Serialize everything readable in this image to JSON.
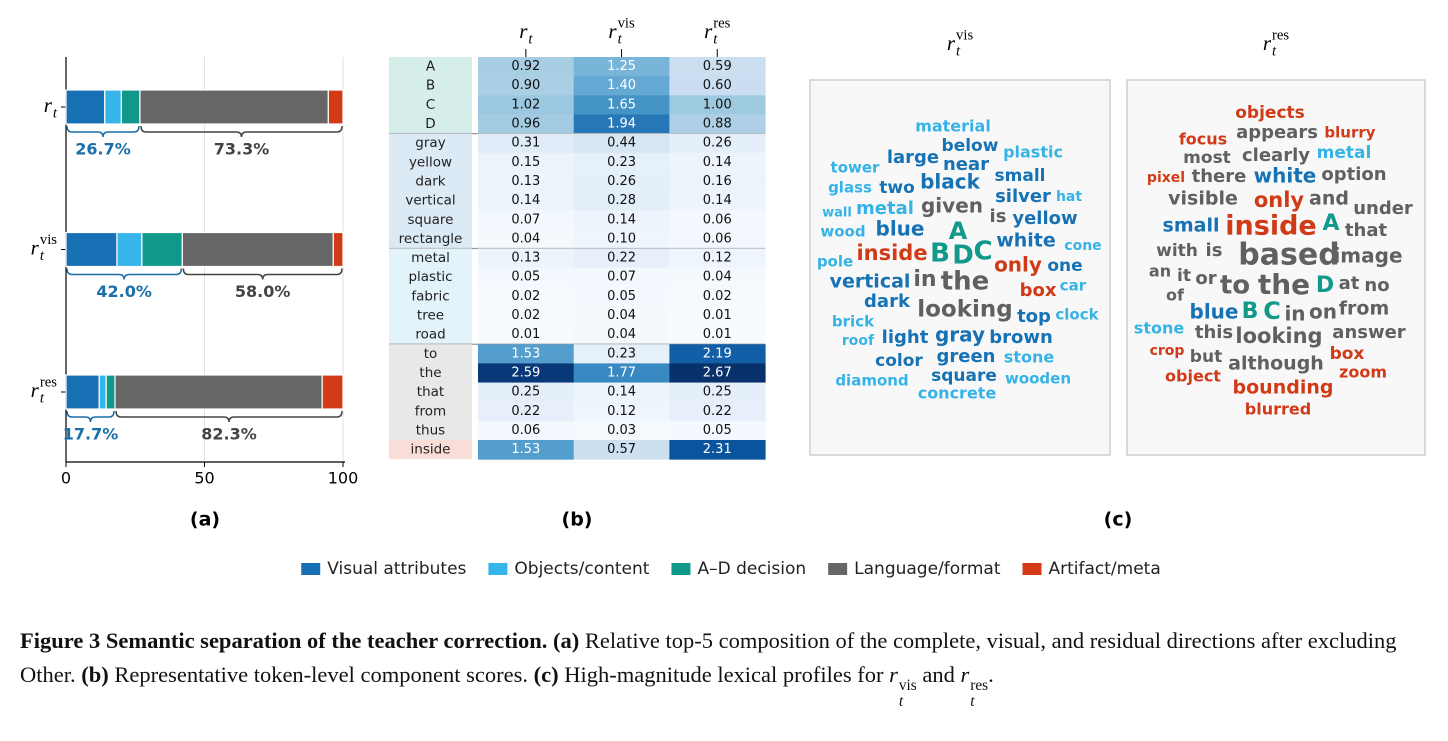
{
  "chart_data": [
    {
      "type": "stacked-bar",
      "orientation": "horizontal",
      "panel_label": "(a)",
      "categories": [
        {
          "base": "r",
          "sub": "t"
        },
        {
          "base": "r",
          "sub": "t",
          "sup": "vis"
        },
        {
          "base": "r",
          "sub": "t",
          "sup": "res"
        }
      ],
      "series": [
        {
          "name": "Visual attributes",
          "color": "#1670b3",
          "values": [
            14,
            18.4,
            12
          ]
        },
        {
          "name": "Objects/content",
          "color": "#35b5e9",
          "values": [
            6,
            9,
            2.5
          ]
        },
        {
          "name": "A–D decision",
          "color": "#10998a",
          "values": [
            6.7,
            14.6,
            3.2
          ]
        },
        {
          "name": "Language/format",
          "color": "#666666",
          "values": [
            68,
            54.5,
            74.8
          ]
        },
        {
          "name": "Artifact/meta",
          "color": "#d23b16",
          "values": [
            5.3,
            3.5,
            7.5
          ]
        }
      ],
      "group_labels": [
        [
          "26.7%",
          "73.3%"
        ],
        [
          "42.0%",
          "58.0%"
        ],
        [
          "17.7%",
          "82.3%"
        ]
      ],
      "xlim": [
        0,
        100
      ],
      "xticks": [
        0,
        50,
        100
      ],
      "grid": true
    },
    {
      "type": "heatmap",
      "panel_label": "(b)",
      "colormap": "Blues",
      "columns": [
        {
          "base": "r",
          "sub": "t"
        },
        {
          "base": "r",
          "sub": "t",
          "sup": "vis"
        },
        {
          "base": "r",
          "sub": "t",
          "sup": "res"
        }
      ],
      "groups": [
        {
          "color": "#d6eeea",
          "rows": [
            "A",
            "B",
            "C",
            "D"
          ],
          "values": [
            [
              0.92,
              1.25,
              0.59
            ],
            [
              0.9,
              1.4,
              0.6
            ],
            [
              1.02,
              1.65,
              1.0
            ],
            [
              0.96,
              1.94,
              0.88
            ]
          ],
          "value_labels": [
            [
              "0.92",
              "1.25",
              "0.59"
            ],
            [
              "0.90",
              "1.40",
              "0.60"
            ],
            [
              "1.02",
              "1.65",
              "1.00"
            ],
            [
              "0.96",
              "1.94",
              "0.88"
            ]
          ]
        },
        {
          "color": "#dceaf5",
          "rows": [
            "gray",
            "yellow",
            "dark",
            "vertical",
            "square",
            "rectangle"
          ],
          "values": [
            [
              0.31,
              0.44,
              0.26
            ],
            [
              0.15,
              0.23,
              0.14
            ],
            [
              0.13,
              0.26,
              0.16
            ],
            [
              0.14,
              0.28,
              0.14
            ],
            [
              0.07,
              0.14,
              0.06
            ],
            [
              0.04,
              0.1,
              0.06
            ]
          ],
          "value_labels": [
            [
              "0.31",
              "0.44",
              "0.26"
            ],
            [
              "0.15",
              "0.23",
              "0.14"
            ],
            [
              "0.13",
              "0.26",
              "0.16"
            ],
            [
              "0.14",
              "0.28",
              "0.14"
            ],
            [
              "0.07",
              "0.14",
              "0.06"
            ],
            [
              "0.04",
              "0.10",
              "0.06"
            ]
          ]
        },
        {
          "color": "#e2f3fa",
          "rows": [
            "metal",
            "plastic",
            "fabric",
            "tree",
            "road"
          ],
          "values": [
            [
              0.13,
              0.22,
              0.12
            ],
            [
              0.05,
              0.07,
              0.04
            ],
            [
              0.02,
              0.05,
              0.02
            ],
            [
              0.02,
              0.04,
              0.01
            ],
            [
              0.01,
              0.04,
              0.01
            ]
          ],
          "value_labels": [
            [
              "0.13",
              "0.22",
              "0.12"
            ],
            [
              "0.05",
              "0.07",
              "0.04"
            ],
            [
              "0.02",
              "0.05",
              "0.02"
            ],
            [
              "0.02",
              "0.04",
              "0.01"
            ],
            [
              "0.01",
              "0.04",
              "0.01"
            ]
          ]
        },
        {
          "color": "#e8e8e8",
          "rows": [
            "to",
            "the",
            "that",
            "from",
            "thus"
          ],
          "values": [
            [
              1.53,
              0.23,
              2.19
            ],
            [
              2.59,
              1.77,
              2.67
            ],
            [
              0.25,
              0.14,
              0.25
            ],
            [
              0.22,
              0.12,
              0.22
            ],
            [
              0.06,
              0.03,
              0.05
            ]
          ],
          "value_labels": [
            [
              "1.53",
              "0.23",
              "2.19"
            ],
            [
              "2.59",
              "1.77",
              "2.67"
            ],
            [
              "0.25",
              "0.14",
              "0.25"
            ],
            [
              "0.22",
              "0.12",
              "0.22"
            ],
            [
              "0.06",
              "0.03",
              "0.05"
            ]
          ]
        },
        {
          "color": "#f9ddd7",
          "rows": [
            "inside"
          ],
          "values": [
            [
              1.53,
              0.57,
              2.31
            ]
          ],
          "value_labels": [
            [
              "1.53",
              "0.57",
              "2.31"
            ]
          ]
        }
      ]
    },
    {
      "type": "wordcloud",
      "panel_label": "(c)",
      "clouds": [
        {
          "title": {
            "base": "r",
            "sub": "t",
            "sup": "vis"
          },
          "words": [
            {
              "text": "material",
              "color": "#36b3e6"
            },
            {
              "text": "below",
              "color": "#1672b4"
            },
            {
              "text": "tower",
              "color": "#36b3e6"
            },
            {
              "text": "large",
              "color": "#1672b4"
            },
            {
              "text": "near",
              "color": "#1672b4"
            },
            {
              "text": "plastic",
              "color": "#36b3e6"
            },
            {
              "text": "glass",
              "color": "#36b3e6"
            },
            {
              "text": "two",
              "color": "#1672b4"
            },
            {
              "text": "black",
              "color": "#1672b4"
            },
            {
              "text": "small",
              "color": "#1672b4"
            },
            {
              "text": "silver",
              "color": "#1672b4"
            },
            {
              "text": "hat",
              "color": "#36b3e6"
            },
            {
              "text": "wall",
              "color": "#36b3e6"
            },
            {
              "text": "metal",
              "color": "#36b3e6"
            },
            {
              "text": "given",
              "color": "#606060"
            },
            {
              "text": "is",
              "color": "#606060"
            },
            {
              "text": "yellow",
              "color": "#1672b4"
            },
            {
              "text": "wood",
              "color": "#36b3e6"
            },
            {
              "text": "blue",
              "color": "#1672b4"
            },
            {
              "text": "A",
              "color": "#119a8a"
            },
            {
              "text": "white",
              "color": "#1672b4"
            },
            {
              "text": "cone",
              "color": "#36b3e6"
            },
            {
              "text": "inside",
              "color": "#d03a16"
            },
            {
              "text": "B",
              "color": "#119a8a"
            },
            {
              "text": "D",
              "color": "#119a8a"
            },
            {
              "text": "C",
              "color": "#119a8a"
            },
            {
              "text": "pole",
              "color": "#36b3e6"
            },
            {
              "text": "only",
              "color": "#d03a16"
            },
            {
              "text": "one",
              "color": "#1672b4"
            },
            {
              "text": "in",
              "color": "#606060"
            },
            {
              "text": "the",
              "color": "#606060"
            },
            {
              "text": "vertical",
              "color": "#1672b4"
            },
            {
              "text": "box",
              "color": "#d03a16"
            },
            {
              "text": "car",
              "color": "#36b3e6"
            },
            {
              "text": "dark",
              "color": "#1672b4"
            },
            {
              "text": "looking",
              "color": "#606060"
            },
            {
              "text": "top",
              "color": "#1672b4"
            },
            {
              "text": "clock",
              "color": "#36b3e6"
            },
            {
              "text": "brick",
              "color": "#36b3e6"
            },
            {
              "text": "light",
              "color": "#1672b4"
            },
            {
              "text": "gray",
              "color": "#1672b4"
            },
            {
              "text": "brown",
              "color": "#1672b4"
            },
            {
              "text": "roof",
              "color": "#36b3e6"
            },
            {
              "text": "color",
              "color": "#1672b4"
            },
            {
              "text": "green",
              "color": "#1672b4"
            },
            {
              "text": "stone",
              "color": "#36b3e6"
            },
            {
              "text": "diamond",
              "color": "#36b3e6"
            },
            {
              "text": "square",
              "color": "#1672b4"
            },
            {
              "text": "wooden",
              "color": "#36b3e6"
            },
            {
              "text": "concrete",
              "color": "#36b3e6"
            }
          ]
        },
        {
          "title": {
            "base": "r",
            "sub": "t",
            "sup": "res"
          },
          "words": [
            {
              "text": "objects",
              "color": "#d03a16"
            },
            {
              "text": "focus",
              "color": "#d03a16"
            },
            {
              "text": "appears",
              "color": "#606060"
            },
            {
              "text": "blurry",
              "color": "#d03a16"
            },
            {
              "text": "most",
              "color": "#606060"
            },
            {
              "text": "clearly",
              "color": "#606060"
            },
            {
              "text": "metal",
              "color": "#36b3e6"
            },
            {
              "text": "pixel",
              "color": "#d03a16"
            },
            {
              "text": "there",
              "color": "#606060"
            },
            {
              "text": "white",
              "color": "#1672b4"
            },
            {
              "text": "option",
              "color": "#606060"
            },
            {
              "text": "visible",
              "color": "#606060"
            },
            {
              "text": "only",
              "color": "#d03a16"
            },
            {
              "text": "and",
              "color": "#606060"
            },
            {
              "text": "under",
              "color": "#606060"
            },
            {
              "text": "small",
              "color": "#1672b4"
            },
            {
              "text": "inside",
              "color": "#d03a16"
            },
            {
              "text": "A",
              "color": "#119a8a"
            },
            {
              "text": "that",
              "color": "#606060"
            },
            {
              "text": "with",
              "color": "#606060"
            },
            {
              "text": "is",
              "color": "#606060"
            },
            {
              "text": "based",
              "color": "#606060"
            },
            {
              "text": "image",
              "color": "#606060"
            },
            {
              "text": "an",
              "color": "#606060"
            },
            {
              "text": "it",
              "color": "#606060"
            },
            {
              "text": "or",
              "color": "#606060"
            },
            {
              "text": "to",
              "color": "#606060"
            },
            {
              "text": "the",
              "color": "#606060"
            },
            {
              "text": "D",
              "color": "#119a8a"
            },
            {
              "text": "at",
              "color": "#606060"
            },
            {
              "text": "no",
              "color": "#606060"
            },
            {
              "text": "of",
              "color": "#606060"
            },
            {
              "text": "blue",
              "color": "#1672b4"
            },
            {
              "text": "B",
              "color": "#119a8a"
            },
            {
              "text": "C",
              "color": "#119a8a"
            },
            {
              "text": "in",
              "color": "#606060"
            },
            {
              "text": "on",
              "color": "#606060"
            },
            {
              "text": "from",
              "color": "#606060"
            },
            {
              "text": "stone",
              "color": "#36b3e6"
            },
            {
              "text": "this",
              "color": "#606060"
            },
            {
              "text": "looking",
              "color": "#606060"
            },
            {
              "text": "answer",
              "color": "#606060"
            },
            {
              "text": "crop",
              "color": "#d03a16"
            },
            {
              "text": "but",
              "color": "#606060"
            },
            {
              "text": "although",
              "color": "#606060"
            },
            {
              "text": "box",
              "color": "#d03a16"
            },
            {
              "text": "zoom",
              "color": "#d03a16"
            },
            {
              "text": "object",
              "color": "#d03a16"
            },
            {
              "text": "bounding",
              "color": "#d03a16"
            },
            {
              "text": "blurred",
              "color": "#d03a16"
            }
          ]
        }
      ]
    }
  ],
  "caption": [
    {
      "text": "Figure 3  Semantic separation of the teacher correction. (a)",
      "bold": true
    },
    {
      "text": " Relative top-5 composition of the complete, visual, and residual directions after excluding Other. "
    },
    {
      "text": "(b)",
      "bold": true
    },
    {
      "text": " Representative token-level component scores. "
    },
    {
      "text": "(c)",
      "bold": true
    },
    {
      "text": " High-magnitude lexical profiles for "
    },
    {
      "math": {
        "base": "r",
        "sub": "t",
        "sup": "vis"
      }
    },
    {
      "text": " and "
    },
    {
      "math": {
        "base": "r",
        "sub": "t",
        "sup": "res"
      }
    },
    {
      "text": "."
    }
  ]
}
